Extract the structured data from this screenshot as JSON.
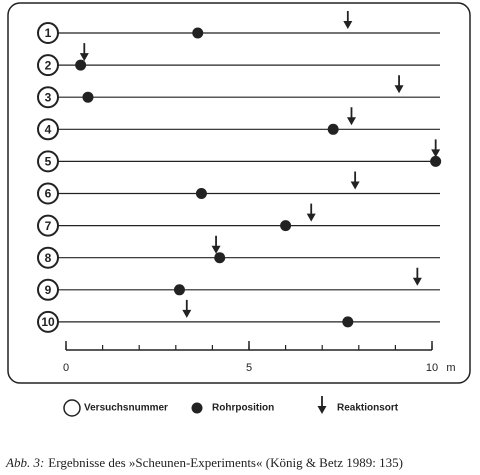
{
  "chart_data": {
    "type": "scatter",
    "row_legend": "Versuchsnummer",
    "categories": [
      "1",
      "2",
      "3",
      "4",
      "5",
      "6",
      "7",
      "8",
      "9",
      "10"
    ],
    "series": [
      {
        "name": "Rohrposition",
        "marker": "dot",
        "color": "#222222",
        "values": [
          3.6,
          0.4,
          0.6,
          7.3,
          10.1,
          3.7,
          6.0,
          4.2,
          3.1,
          7.7
        ]
      },
      {
        "name": "Reaktionsort",
        "marker": "arrow",
        "color": "#222222",
        "values": [
          7.7,
          0.5,
          9.1,
          7.8,
          10.1,
          7.9,
          6.7,
          4.1,
          9.6,
          3.3
        ]
      }
    ],
    "xlim": [
      0,
      10
    ],
    "xticks": [
      0,
      5,
      10
    ],
    "xminor_ticks": [
      0,
      1,
      2,
      3,
      4,
      5,
      6,
      7,
      8,
      9,
      10
    ],
    "x_unit": "m",
    "caption_label": "Abb. 3:",
    "caption": "Ergebnisse des »Scheunen-Experiments« (König & Betz 1989: 135)"
  }
}
